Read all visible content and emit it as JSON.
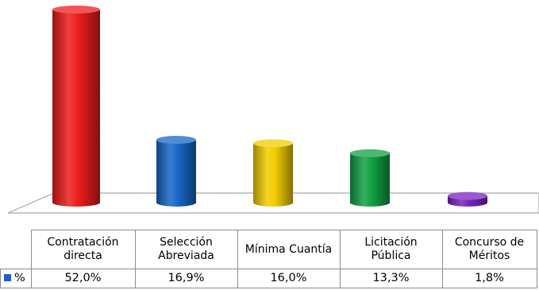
{
  "chart_data": {
    "type": "bar",
    "categories": [
      "Contratación\ndirecta",
      "Selección\nAbreviada",
      "Mínima Cuantía",
      "Licitación\nPública",
      "Concurso de\nMéritos"
    ],
    "series": [
      {
        "name": "%",
        "values": [
          52.0,
          16.9,
          16.0,
          13.3,
          1.8
        ],
        "labels": [
          "52,0%",
          "16,9%",
          "16,0%",
          "13,3%",
          "1,8%"
        ],
        "legend_color": "#1f5fbf"
      }
    ],
    "bar_colors": [
      "#ee1c1c",
      "#1766c7",
      "#f2cc00",
      "#11a043",
      "#7a22bf"
    ],
    "title": "",
    "xlabel": "",
    "ylabel": "",
    "ylim": [
      0,
      52
    ],
    "grid": false,
    "legend": "data-table"
  }
}
